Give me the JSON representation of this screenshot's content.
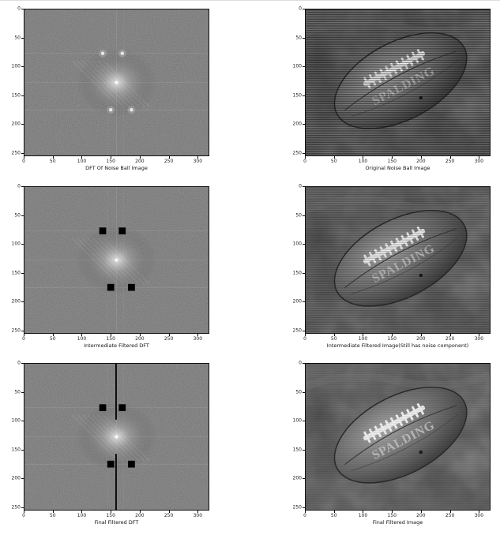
{
  "figure": {
    "panels": [
      {
        "id": "dft-noise",
        "kind": "dft",
        "caption": "DFT Of Noise Ball Image",
        "blocks": false,
        "lines": false
      },
      {
        "id": "orig-noise",
        "kind": "ball",
        "caption": "Original Noise Ball Image",
        "noise": 1.0
      },
      {
        "id": "inter-dft",
        "kind": "dft",
        "caption": "Intermediate Filtered DFT",
        "blocks": true,
        "lines": false
      },
      {
        "id": "inter-img",
        "kind": "ball",
        "caption": "Intermediate Filtered Image(Still has noise component)",
        "noise": 0.55
      },
      {
        "id": "final-dft",
        "kind": "dft",
        "caption": "Final Filtered DFT",
        "blocks": true,
        "lines": true
      },
      {
        "id": "final-img",
        "kind": "ball",
        "caption": "Final Filtered Image",
        "noise": 0.2
      }
    ],
    "x_ticks": [
      "0",
      "50",
      "100",
      "150",
      "200",
      "250",
      "300"
    ],
    "x_tick_values": [
      0,
      50,
      100,
      150,
      200,
      250,
      300
    ],
    "y_ticks": [
      "0",
      "50",
      "100",
      "150",
      "200",
      "250"
    ],
    "y_tick_values": [
      0,
      50,
      100,
      150,
      200,
      250
    ],
    "xlim": [
      0,
      320
    ],
    "ylim": [
      0,
      256
    ],
    "ball_text": "SPALDING"
  }
}
